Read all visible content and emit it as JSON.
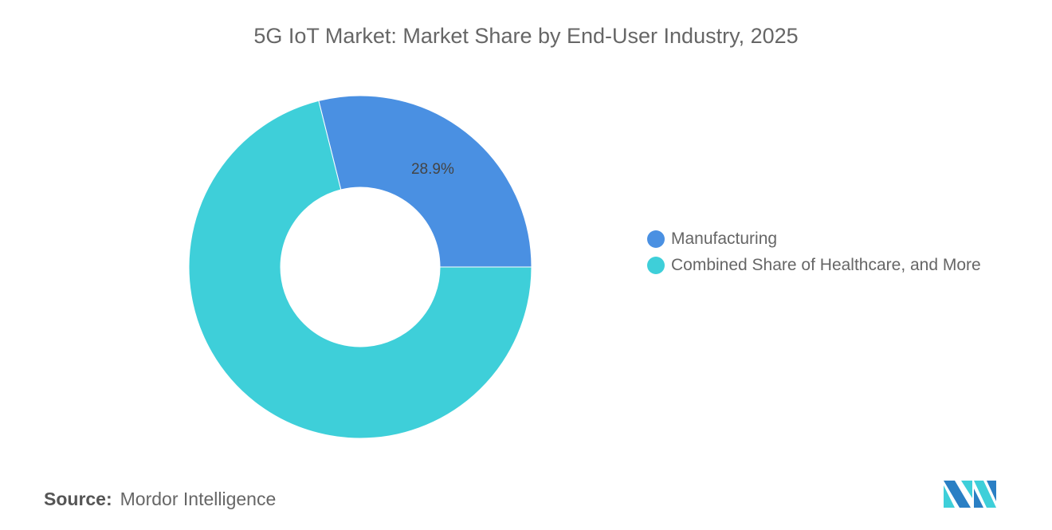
{
  "chart_data": {
    "type": "pie",
    "title": "5G IoT Market: Market Share by End-User Industry, 2025",
    "donut": true,
    "categories": [
      "Manufacturing",
      "Combined Share of Healthcare, and More"
    ],
    "values": [
      28.9,
      71.1
    ],
    "data_labels": [
      "28.9%",
      ""
    ],
    "colors": [
      "#4a90e2",
      "#3ecfd9"
    ],
    "legend_position": "right"
  },
  "source": {
    "label": "Source:",
    "value": "Mordor Intelligence"
  },
  "logo": {
    "text": "Mordor Intelligence",
    "colors": [
      "#2a7fc4",
      "#3ecfd9"
    ]
  }
}
